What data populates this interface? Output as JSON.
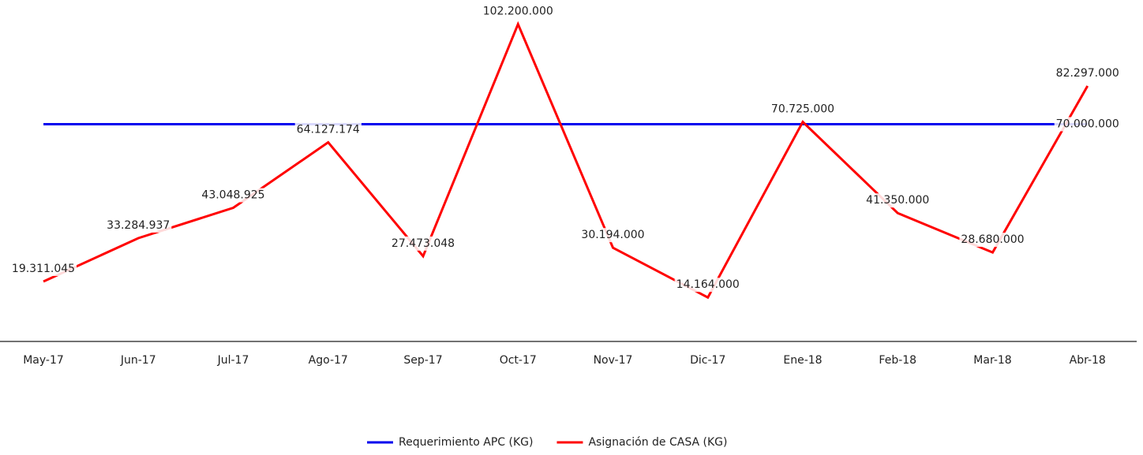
{
  "chart_data": {
    "type": "line",
    "categories": [
      "May-17",
      "Jun-17",
      "Jul-17",
      "Ago-17",
      "Sep-17",
      "Oct-17",
      "Nov-17",
      "Dic-17",
      "Ene-18",
      "Feb-18",
      "Mar-18",
      "Abr-18"
    ],
    "series": [
      {
        "name": "Requerimiento APC (KG)",
        "color": "#0000ee",
        "values": [
          70000000,
          70000000,
          70000000,
          70000000,
          70000000,
          70000000,
          70000000,
          70000000,
          70000000,
          70000000,
          70000000,
          70000000
        ],
        "value_labels": [
          null,
          null,
          null,
          null,
          null,
          null,
          null,
          null,
          null,
          null,
          null,
          "70.000.000"
        ]
      },
      {
        "name": "Asignación de CASA (KG)",
        "color": "#ff0000",
        "values": [
          19311045,
          33284937,
          43048925,
          64127174,
          27473048,
          102200000,
          30194000,
          14164000,
          70725000,
          41350000,
          28680000,
          82297000
        ],
        "value_labels": [
          "19.311.045",
          "33.284.937",
          "43.048.925",
          "64.127.174",
          "27.473.048",
          "102.200.000",
          "30.194.000",
          "14.164.000",
          "70.725.000",
          "41.350.000",
          "28.680.000",
          "82.297.000"
        ]
      }
    ],
    "ylim": [
      0,
      110000000
    ],
    "legend": "bottom"
  }
}
